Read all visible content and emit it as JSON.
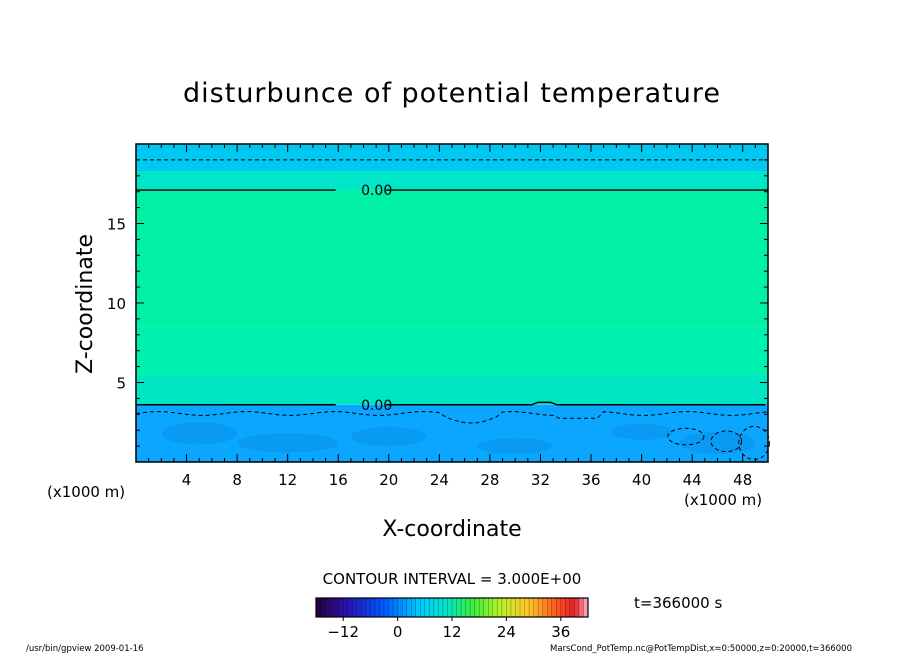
{
  "chart_data": {
    "type": "heatmap",
    "title": "disturbunce of potential temperature",
    "xlabel": "X-coordinate",
    "ylabel": "Z-coordinate",
    "x_unit": "(x1000 m)",
    "y_unit": "(x1000 m)",
    "xlim": [
      0,
      50
    ],
    "ylim": [
      0,
      20
    ],
    "x_ticks": [
      4,
      8,
      12,
      16,
      20,
      24,
      28,
      32,
      36,
      40,
      44,
      48
    ],
    "y_ticks": [
      5,
      10,
      15
    ],
    "contour_labels": [
      {
        "text": "0.00",
        "x": 17.3,
        "z": 17.1
      },
      {
        "text": "0.00",
        "x": 17.3,
        "z": 3.6
      }
    ],
    "contour_interval_text": "CONTOUR INTERVAL = 3.000E+00",
    "colorbar": {
      "min": -18,
      "max": 42,
      "ticks": [
        -12,
        0,
        12,
        24,
        36
      ]
    },
    "time_label": "t=366000 s",
    "colors": {
      "band_top": "#00c8f0",
      "band_upper": "#00e6c8",
      "band_mid": "#00f0a6",
      "band_middle": "#00f2b0",
      "band_lower": "#00e6c2",
      "band_bottom": "#0aa6ff",
      "blob": "#0a8fe8"
    }
  },
  "footer": {
    "left": "/usr/bin/gpview   2009-01-16",
    "right": "MarsCond_PotTemp.nc@PotTempDist,x=0:50000,z=0:20000,t=366000"
  }
}
